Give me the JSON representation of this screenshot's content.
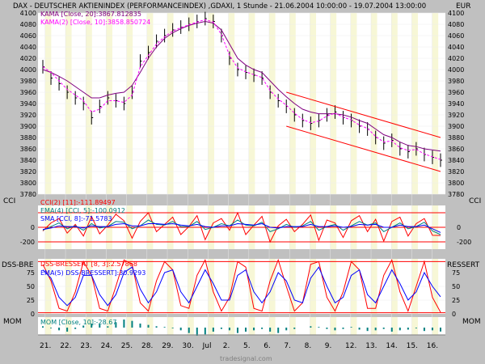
{
  "header": {
    "title": "DAX - DEUTSCHER AKTIENINDEX (PERFORMANCEINDEX) ,GDAXI, 1 Stunde - 21.06.2004 10:00:00 - 19.07.2004 13:00:00",
    "currency": "EUR"
  },
  "watermark": "tradesignal.com",
  "colors": {
    "background": "#ffffff",
    "band": "#f7f7d6",
    "frame": "#c0c0c0",
    "price": "#000000",
    "kama20": "#800080",
    "kama2": "#ff00ff",
    "channel": "#ff0000",
    "cci": "#ff0000",
    "cci_ema": "#008080",
    "cci_sma": "#0000ff",
    "dss": "#ff0000",
    "dss_ema": "#0000ff",
    "mom": "#008080"
  },
  "x_axis": {
    "ticks": [
      "21.",
      "22.",
      "23.",
      "24.",
      "25.",
      "28.",
      "29.",
      "30.",
      "Jul",
      "2.",
      "5.",
      "6.",
      "7.",
      "8.",
      "9.",
      "12.",
      "13.",
      "14.",
      "15.",
      "16."
    ]
  },
  "chart_data": [
    {
      "type": "line",
      "panel": "price",
      "legend": [
        "DAX",
        "KAMA [Close, 20]:3867.812835",
        "KAMA(2) [Close, 10]:3858.850724"
      ],
      "ylim": [
        3780,
        4100
      ],
      "yticks": [
        3780,
        3800,
        3820,
        3840,
        3860,
        3880,
        3900,
        3920,
        3940,
        3960,
        3980,
        4000,
        4020,
        4040,
        4060,
        4080,
        4100
      ],
      "close": [
        4005,
        3985,
        3975,
        3960,
        3950,
        3940,
        3915,
        3935,
        3950,
        3945,
        3940,
        3960,
        4015,
        4030,
        4050,
        4060,
        4070,
        4075,
        4080,
        4085,
        4090,
        4085,
        4060,
        4020,
        4000,
        3995,
        3990,
        3985,
        3960,
        3945,
        3935,
        3920,
        3910,
        3905,
        3910,
        3920,
        3925,
        3915,
        3910,
        3900,
        3895,
        3880,
        3870,
        3875,
        3860,
        3855,
        3860,
        3850,
        3845,
        3840
      ],
      "kama20_line": [
        4000,
        3995,
        3988,
        3980,
        3970,
        3960,
        3950,
        3950,
        3955,
        3958,
        3960,
        3972,
        3995,
        4020,
        4040,
        4055,
        4065,
        4072,
        4078,
        4082,
        4085,
        4082,
        4070,
        4045,
        4020,
        4008,
        4000,
        3995,
        3980,
        3965,
        3952,
        3940,
        3930,
        3925,
        3922,
        3922,
        3922,
        3920,
        3916,
        3910,
        3905,
        3895,
        3885,
        3880,
        3872,
        3866,
        3864,
        3860,
        3858,
        3856
      ],
      "kama2_line": [
        4005,
        3995,
        3980,
        3965,
        3955,
        3945,
        3925,
        3930,
        3945,
        3945,
        3942,
        3955,
        4005,
        4025,
        4045,
        4058,
        4068,
        4074,
        4079,
        4084,
        4088,
        4084,
        4062,
        4025,
        4003,
        3996,
        3991,
        3986,
        3963,
        3948,
        3937,
        3923,
        3912,
        3906,
        3909,
        3918,
        3923,
        3916,
        3911,
        3902,
        3896,
        3882,
        3872,
        3874,
        3862,
        3857,
        3859,
        3851,
        3846,
        3841
      ],
      "channel_upper": {
        "x": [
          30,
          49
        ],
        "y": [
          3960,
          3880
        ]
      },
      "channel_lower": {
        "x": [
          30,
          49
        ],
        "y": [
          3900,
          3820
        ]
      }
    },
    {
      "type": "line",
      "panel": "cci",
      "label": "CCI",
      "legend": [
        "CCI(2) [11]:-111.89497",
        "EMA(4) [CCI, 5]:-100.0912",
        "SMA [CCI, 8]:-71.5783"
      ],
      "ylim": [
        -300,
        300
      ],
      "yticks_left": [
        "0",
        "-200"
      ],
      "yticks_right": [
        "0",
        "-200"
      ],
      "levels": [
        200,
        0,
        -200
      ],
      "cci": [
        -50,
        60,
        120,
        -80,
        40,
        -120,
        150,
        -90,
        30,
        180,
        90,
        -150,
        80,
        200,
        -60,
        40,
        140,
        -100,
        10,
        160,
        -170,
        60,
        120,
        -40,
        200,
        -100,
        30,
        150,
        -200,
        20,
        110,
        -60,
        40,
        170,
        -180,
        100,
        60,
        -140,
        90,
        160,
        -60,
        110,
        -190,
        80,
        140,
        -120,
        50,
        120,
        -110,
        -112
      ],
      "ema": [
        -40,
        10,
        60,
        -20,
        20,
        -40,
        50,
        -10,
        10,
        80,
        70,
        -20,
        20,
        100,
        40,
        30,
        80,
        10,
        10,
        80,
        -30,
        0,
        50,
        20,
        100,
        30,
        20,
        70,
        -60,
        -20,
        40,
        0,
        20,
        80,
        -40,
        10,
        40,
        -40,
        20,
        80,
        30,
        60,
        -60,
        0,
        60,
        -20,
        10,
        70,
        -50,
        -100
      ],
      "sma": [
        -30,
        -10,
        20,
        10,
        10,
        -10,
        20,
        10,
        10,
        40,
        50,
        20,
        20,
        50,
        50,
        40,
        50,
        30,
        20,
        40,
        10,
        0,
        20,
        20,
        50,
        40,
        30,
        50,
        0,
        -10,
        10,
        10,
        10,
        40,
        10,
        10,
        20,
        0,
        10,
        40,
        30,
        40,
        0,
        0,
        30,
        10,
        10,
        30,
        -20,
        -72
      ]
    },
    {
      "type": "line",
      "panel": "dss",
      "label_left": "DSS-BRE",
      "label_right": "RESSERT",
      "legend": [
        "DSS-BRESSERT [8, 3]:2.57868",
        "EMA(5) DSS-BRESSERT]:30.9293"
      ],
      "ylim": [
        0,
        100
      ],
      "yticks": [
        "0",
        "25",
        "50",
        "75"
      ],
      "dss": [
        90,
        60,
        10,
        5,
        40,
        95,
        70,
        10,
        5,
        50,
        98,
        90,
        20,
        5,
        60,
        95,
        80,
        15,
        10,
        70,
        98,
        40,
        5,
        30,
        95,
        85,
        10,
        5,
        60,
        98,
        50,
        5,
        20,
        90,
        95,
        30,
        5,
        40,
        95,
        80,
        10,
        10,
        70,
        98,
        40,
        5,
        50,
        95,
        30,
        3
      ],
      "ema": [
        80,
        65,
        30,
        15,
        30,
        70,
        70,
        35,
        15,
        35,
        75,
        85,
        45,
        20,
        40,
        75,
        80,
        40,
        20,
        50,
        80,
        55,
        25,
        25,
        70,
        80,
        40,
        20,
        40,
        75,
        60,
        25,
        20,
        65,
        85,
        50,
        20,
        30,
        70,
        80,
        35,
        20,
        50,
        80,
        55,
        25,
        40,
        75,
        50,
        31
      ]
    },
    {
      "type": "bar",
      "panel": "mom",
      "label": "MOM",
      "legend": [
        "MOM [Close, 10]:-28.67"
      ],
      "values": [
        10,
        -5,
        -20,
        -30,
        -10,
        15,
        30,
        25,
        10,
        40,
        60,
        50,
        30,
        20,
        10,
        5,
        -5,
        -20,
        -40,
        -60,
        -50,
        -30,
        -10,
        -20,
        -40,
        -30,
        -20,
        -10,
        -30,
        -40,
        -20,
        -10,
        0,
        10,
        5,
        -10,
        -20,
        -10,
        5,
        -15,
        -25,
        -20,
        -10,
        -30,
        -20,
        -15,
        -5,
        -25,
        -20,
        -29
      ]
    }
  ]
}
